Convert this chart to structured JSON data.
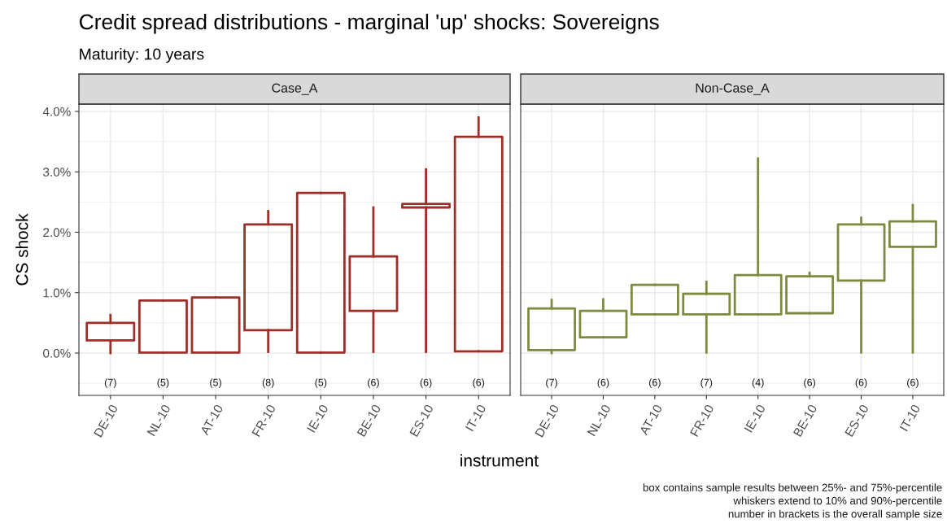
{
  "chart_data": [
    {
      "type": "box",
      "title": "Case_A",
      "subtitle": "Maturity: 10 years",
      "ylabel": "CS shock",
      "xlabel": "instrument",
      "categories": [
        "DE-10",
        "NL-10",
        "AT-10",
        "FR-10",
        "IE-10",
        "BE-10",
        "ES-10",
        "IT-10"
      ],
      "series": [
        {
          "color": "#9e2f28",
          "boxes": [
            {
              "low": 0.0,
              "q1": 0.21,
              "q3": 0.5,
              "high": 0.63
            },
            {
              "low": 0.01,
              "q1": 0.01,
              "q3": 0.87,
              "high": 0.87
            },
            {
              "low": 0.01,
              "q1": 0.01,
              "q3": 0.92,
              "high": 0.92
            },
            {
              "low": 0.02,
              "q1": 0.38,
              "q3": 2.13,
              "high": 2.35
            },
            {
              "low": 0.01,
              "q1": 0.01,
              "q3": 2.65,
              "high": 2.65
            },
            {
              "low": 0.02,
              "q1": 0.7,
              "q3": 1.6,
              "high": 2.41
            },
            {
              "low": 0.02,
              "q1": 2.41,
              "q3": 2.47,
              "high": 3.04
            },
            {
              "low": 0.03,
              "q1": 0.03,
              "q3": 3.58,
              "high": 3.9
            }
          ]
        }
      ],
      "ylim": [
        -0.7,
        4.12
      ],
      "yticks": [
        {
          "value": 0,
          "label": "0.0%"
        },
        {
          "value": 1,
          "label": "1.0%"
        },
        {
          "value": 2,
          "label": "2.0%"
        },
        {
          "value": 3,
          "label": "3.0%"
        },
        {
          "value": 4,
          "label": "4.0%"
        }
      ],
      "grid": true,
      "annotations": [
        "Credit spread distributions - marginal 'up' shocks: Sovereigns",
        "(7)",
        "(5)",
        "(5)",
        "(8)",
        "(5)",
        "(6)",
        "(6)",
        "(6)"
      ]
    },
    {
      "type": "box",
      "title": "Non-Case_A",
      "categories": [
        "DE-10",
        "NL-10",
        "AT-10",
        "FR-10",
        "IE-10",
        "BE-10",
        "ES-10",
        "IT-10"
      ],
      "series": [
        {
          "color": "#7f8a3e",
          "boxes": [
            {
              "low": 0.0,
              "q1": 0.05,
              "q3": 0.74,
              "high": 0.88
            },
            {
              "low": 0.26,
              "q1": 0.26,
              "q3": 0.7,
              "high": 0.89
            },
            {
              "low": 0.64,
              "q1": 0.64,
              "q3": 1.13,
              "high": 1.13
            },
            {
              "low": 0.01,
              "q1": 0.64,
              "q3": 0.98,
              "high": 1.18
            },
            {
              "low": 0.64,
              "q1": 0.64,
              "q3": 1.29,
              "high": 3.22
            },
            {
              "low": 0.66,
              "q1": 0.66,
              "q3": 1.27,
              "high": 1.33
            },
            {
              "low": 0.01,
              "q1": 1.2,
              "q3": 2.13,
              "high": 2.24
            },
            {
              "low": 0.01,
              "q1": 1.76,
              "q3": 2.18,
              "high": 2.45
            }
          ]
        }
      ],
      "ylim": [
        -0.7,
        4.12
      ],
      "yticks": [
        0,
        1,
        2,
        3,
        4
      ],
      "grid": true,
      "tick_labels": "x",
      "annotations": [
        "(7)",
        "(6)",
        "(6)",
        "(7)",
        "(4)",
        "(6)",
        "(6)",
        "(6)",
        "box contains sample results between 25%- and 75%-percentile",
        "whiskers extend to 10% and 90%-percentile",
        "number in brackets is the overall sample size"
      ]
    }
  ]
}
